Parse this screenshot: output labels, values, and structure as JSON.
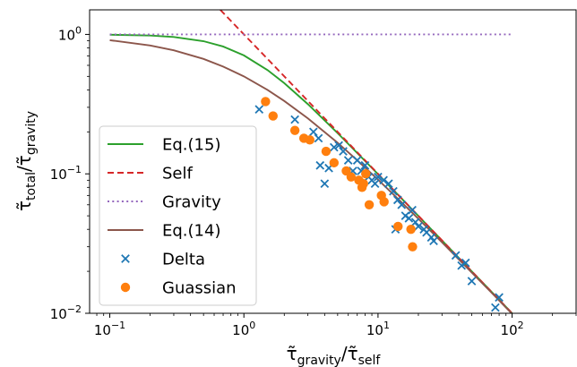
{
  "chart_data": {
    "type": "scatter",
    "x_scale": "log",
    "y_scale": "log",
    "xlim": [
      0.0707,
      300
    ],
    "ylim": [
      0.01,
      1.5
    ],
    "grid": false,
    "legend_position": "lower-left",
    "xlabel": {
      "main": "τ̃",
      "sub1": "gravity",
      "sep": "/τ̃",
      "sub2": "self"
    },
    "ylabel": {
      "main": "τ̃",
      "sub1": "total",
      "sep": "/τ̃",
      "sub2": "gravity"
    },
    "x_ticks": [
      {
        "value": 0.1,
        "base": "10",
        "exp": "−1"
      },
      {
        "value": 1,
        "base": "10",
        "exp": "0"
      },
      {
        "value": 10,
        "base": "10",
        "exp": "1"
      },
      {
        "value": 100,
        "base": "10",
        "exp": "2"
      }
    ],
    "y_ticks": [
      {
        "value": 0.01,
        "base": "10",
        "exp": "−2"
      },
      {
        "value": 0.1,
        "base": "10",
        "exp": "−1"
      },
      {
        "value": 1,
        "base": "10",
        "exp": "0"
      }
    ],
    "series": [
      {
        "name": "Eq.(15)",
        "kind": "line",
        "style": "solid",
        "color": "#2ca02c",
        "x": [
          0.1,
          0.2,
          0.3,
          0.5,
          0.7,
          1,
          1.5,
          2,
          3,
          5,
          7,
          10,
          15,
          20,
          30,
          50,
          70,
          100
        ],
        "y": [
          0.995,
          0.981,
          0.958,
          0.894,
          0.819,
          0.707,
          0.555,
          0.447,
          0.316,
          0.196,
          0.141,
          0.0995,
          0.0665,
          0.0499,
          0.0333,
          0.02,
          0.0143,
          0.01
        ]
      },
      {
        "name": "Self",
        "kind": "line",
        "style": "dashed",
        "color": "#d62728",
        "x": [
          0.667,
          100
        ],
        "y": [
          1.5,
          0.01
        ]
      },
      {
        "name": "Gravity",
        "kind": "line",
        "style": "dotted",
        "color": "#9467bd",
        "x": [
          0.1,
          100
        ],
        "y": [
          1,
          1
        ]
      },
      {
        "name": "Eq.(14)",
        "kind": "line",
        "style": "solid",
        "color": "#8c564b",
        "x": [
          0.1,
          0.2,
          0.3,
          0.5,
          0.7,
          1,
          1.5,
          2,
          3,
          5,
          7,
          10,
          15,
          20,
          30,
          50,
          70,
          100
        ],
        "y": [
          0.909,
          0.833,
          0.769,
          0.667,
          0.588,
          0.5,
          0.4,
          0.333,
          0.25,
          0.167,
          0.125,
          0.0909,
          0.0625,
          0.0476,
          0.0323,
          0.0196,
          0.0141,
          0.0099
        ]
      },
      {
        "name": "Delta",
        "kind": "scatter",
        "marker": "x",
        "color": "#1f77b4",
        "points": [
          [
            1.3,
            0.29
          ],
          [
            2.4,
            0.245
          ],
          [
            3.3,
            0.2
          ],
          [
            3.6,
            0.18
          ],
          [
            3.7,
            0.115
          ],
          [
            4,
            0.085
          ],
          [
            4.3,
            0.11
          ],
          [
            4.7,
            0.155
          ],
          [
            5.1,
            0.16
          ],
          [
            5.5,
            0.145
          ],
          [
            6,
            0.125
          ],
          [
            6.5,
            0.105
          ],
          [
            7,
            0.125
          ],
          [
            7.5,
            0.105
          ],
          [
            8,
            0.115
          ],
          [
            8.5,
            0.095
          ],
          [
            9,
            0.09
          ],
          [
            9.5,
            0.085
          ],
          [
            10,
            0.095
          ],
          [
            11,
            0.09
          ],
          [
            12,
            0.085
          ],
          [
            13,
            0.075
          ],
          [
            13.5,
            0.04
          ],
          [
            14,
            0.065
          ],
          [
            15,
            0.06
          ],
          [
            16,
            0.05
          ],
          [
            17,
            0.048
          ],
          [
            18,
            0.055
          ],
          [
            19,
            0.045
          ],
          [
            20,
            0.042
          ],
          [
            22,
            0.04
          ],
          [
            23,
            0.038
          ],
          [
            25,
            0.035
          ],
          [
            26,
            0.033
          ],
          [
            38,
            0.026
          ],
          [
            42,
            0.022
          ],
          [
            45,
            0.023
          ],
          [
            50,
            0.017
          ],
          [
            75,
            0.011
          ],
          [
            80,
            0.013
          ]
        ]
      },
      {
        "name": "Guassian",
        "kind": "scatter",
        "marker": "o",
        "color": "#ff7f0e",
        "points": [
          [
            1.45,
            0.33
          ],
          [
            1.65,
            0.26
          ],
          [
            2.4,
            0.205
          ],
          [
            2.8,
            0.18
          ],
          [
            3.1,
            0.175
          ],
          [
            4.1,
            0.145
          ],
          [
            4.7,
            0.12
          ],
          [
            5.8,
            0.105
          ],
          [
            6.3,
            0.095
          ],
          [
            7.2,
            0.09
          ],
          [
            7.8,
            0.085
          ],
          [
            7.6,
            0.08
          ],
          [
            8.1,
            0.1
          ],
          [
            8.6,
            0.06
          ],
          [
            10.6,
            0.07
          ],
          [
            11.1,
            0.063
          ],
          [
            14.1,
            0.042
          ],
          [
            17.6,
            0.04
          ],
          [
            18.1,
            0.03
          ]
        ]
      }
    ]
  }
}
